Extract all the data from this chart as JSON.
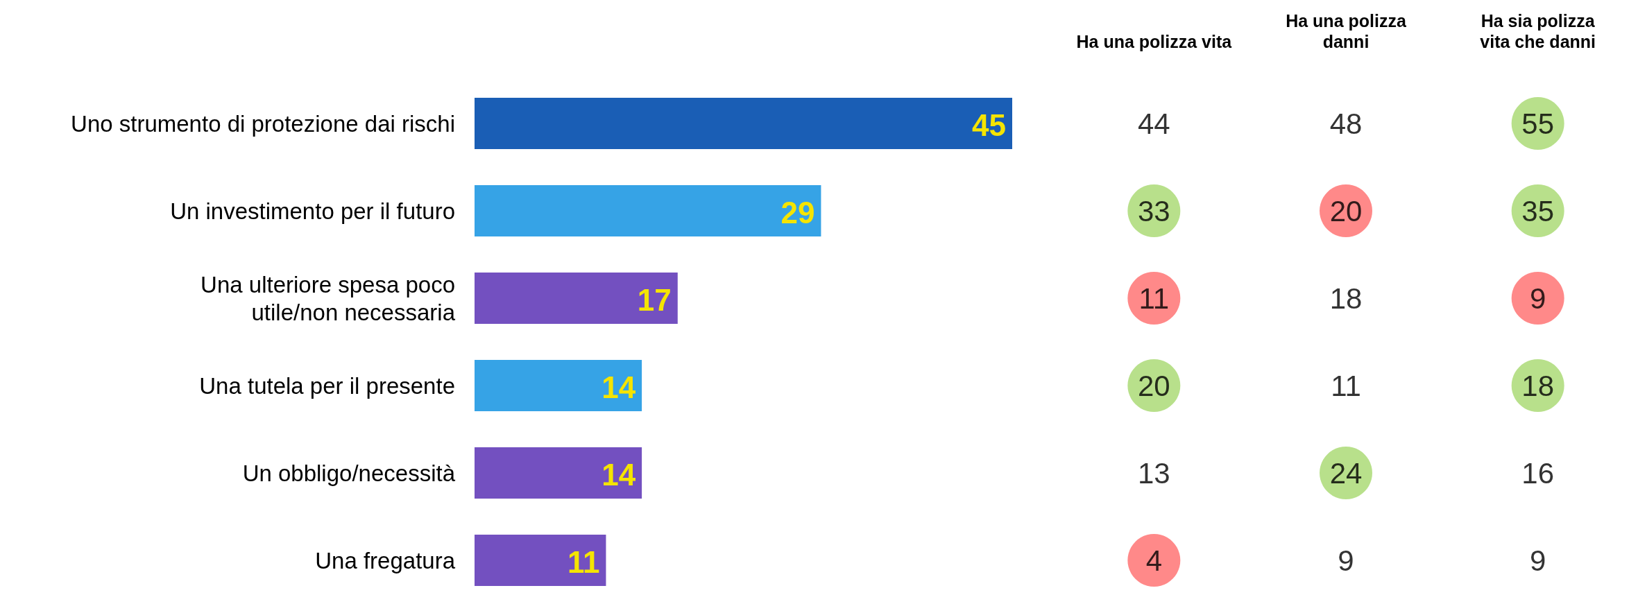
{
  "chart_data": [
    {
      "type": "bar",
      "orientation": "horizontal",
      "categories": [
        "Uno strumento di protezione dai rischi",
        "Un investimento per il futuro",
        "Una ulteriore spesa poco\nutile/non necessaria",
        "Una tutela per il presente",
        "Un obbligo/necessità",
        "Una fregatura"
      ],
      "values": [
        45,
        29,
        17,
        14,
        14,
        11
      ],
      "colors": [
        "#1a5eb5",
        "#36a3e6",
        "#7350c0",
        "#36a3e6",
        "#7350c0",
        "#7350c0"
      ],
      "data_labels": true
    },
    {
      "type": "heatmap",
      "categories": [
        "Ha una polizza vita",
        "Ha una polizza\ndanni",
        "Ha sia polizza\nvita che danni"
      ],
      "y_categories": [
        null,
        null,
        null,
        null,
        null,
        null
      ],
      "cells": [
        [
          44,
          48,
          55
        ],
        [
          33,
          20,
          35
        ],
        [
          11,
          18,
          9
        ],
        [
          20,
          11,
          18
        ],
        [
          13,
          24,
          16
        ],
        [
          4,
          9,
          9
        ]
      ],
      "colors": [
        [
          null,
          null,
          "#a6d86e"
        ],
        [
          "#a6d86e",
          "#ff6b6b",
          "#a6d86e"
        ],
        [
          "#ff6b6b",
          null,
          "#ff6b6b"
        ],
        [
          "#a6d86e",
          null,
          "#a6d86e"
        ],
        [
          null,
          "#a6d86e",
          null
        ],
        [
          "#ff6b6b",
          null,
          null
        ]
      ],
      "data_labels": true,
      "tick_labels": "x"
    }
  ]
}
